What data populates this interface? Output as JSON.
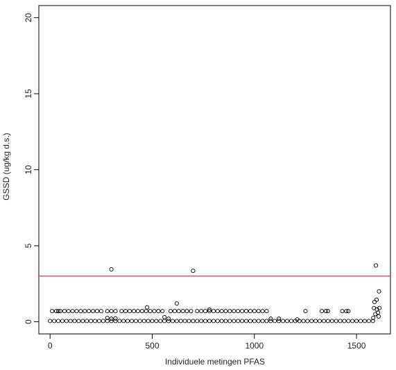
{
  "chart_data": {
    "type": "scatter",
    "xlabel": "Individuele metingen PFAS",
    "ylabel": "GSSD (ug/kg d.s.)",
    "xlim": [
      -55,
      1666
    ],
    "ylim": [
      -0.8,
      20.8
    ],
    "xticks": [
      0,
      500,
      1000,
      1500
    ],
    "yticks": [
      0,
      5,
      10,
      15,
      20
    ],
    "color": "#000000",
    "hline": 3,
    "hline_color": "#e0303a",
    "x": [
      0,
      20,
      40,
      60,
      80,
      100,
      120,
      140,
      160,
      180,
      200,
      220,
      240,
      260,
      280,
      300,
      320,
      340,
      360,
      380,
      400,
      420,
      440,
      460,
      480,
      500,
      520,
      540,
      560,
      580,
      600,
      620,
      640,
      660,
      680,
      700,
      720,
      740,
      760,
      780,
      800,
      820,
      840,
      860,
      880,
      900,
      920,
      940,
      960,
      980,
      1000,
      1020,
      1040,
      1060,
      1080,
      1100,
      1120,
      1140,
      1160,
      1180,
      1200,
      1220,
      1240,
      1260,
      1280,
      1300,
      1320,
      1340,
      1360,
      1380,
      1400,
      1420,
      1440,
      1460,
      1480,
      1500,
      1520,
      1540,
      1560,
      1580,
      10,
      30,
      40,
      50,
      70,
      90,
      110,
      130,
      150,
      170,
      190,
      210,
      230,
      250,
      280,
      300,
      320,
      350,
      370,
      390,
      410,
      430,
      450,
      470,
      490,
      510,
      530,
      550,
      590,
      610,
      630,
      650,
      670,
      690,
      720,
      740,
      760,
      780,
      800,
      820,
      840,
      860,
      880,
      900,
      920,
      940,
      960,
      980,
      1000,
      1020,
      1040,
      1060,
      1250,
      1330,
      1350,
      1360,
      1430,
      1450,
      1460,
      300,
      700,
      1595,
      1610,
      620,
      475,
      1588,
      1598,
      1585,
      1600,
      1605,
      1592,
      1608,
      1582,
      1612,
      280,
      300,
      320,
      560,
      580,
      780,
      1080,
      1120,
      1210
    ],
    "y": [
      0.05,
      0.05,
      0.05,
      0.05,
      0.05,
      0.05,
      0.05,
      0.05,
      0.05,
      0.05,
      0.05,
      0.05,
      0.05,
      0.05,
      0.05,
      0.05,
      0.05,
      0.05,
      0.05,
      0.05,
      0.05,
      0.05,
      0.05,
      0.05,
      0.05,
      0.05,
      0.05,
      0.05,
      0.05,
      0.05,
      0.05,
      0.05,
      0.05,
      0.05,
      0.05,
      0.05,
      0.05,
      0.05,
      0.05,
      0.05,
      0.05,
      0.05,
      0.05,
      0.05,
      0.05,
      0.05,
      0.05,
      0.05,
      0.05,
      0.05,
      0.05,
      0.05,
      0.05,
      0.05,
      0.05,
      0.05,
      0.05,
      0.05,
      0.05,
      0.05,
      0.05,
      0.05,
      0.05,
      0.05,
      0.05,
      0.05,
      0.05,
      0.05,
      0.05,
      0.05,
      0.05,
      0.05,
      0.05,
      0.05,
      0.05,
      0.05,
      0.05,
      0.05,
      0.05,
      0.05,
      0.7,
      0.7,
      0.7,
      0.7,
      0.7,
      0.7,
      0.7,
      0.7,
      0.7,
      0.7,
      0.7,
      0.7,
      0.7,
      0.7,
      0.7,
      0.7,
      0.7,
      0.7,
      0.7,
      0.7,
      0.7,
      0.7,
      0.7,
      0.7,
      0.7,
      0.7,
      0.7,
      0.7,
      0.7,
      0.7,
      0.7,
      0.7,
      0.7,
      0.7,
      0.7,
      0.7,
      0.7,
      0.7,
      0.7,
      0.7,
      0.7,
      0.7,
      0.7,
      0.7,
      0.7,
      0.7,
      0.7,
      0.7,
      0.7,
      0.7,
      0.7,
      0.7,
      0.7,
      0.7,
      0.7,
      0.7,
      0.7,
      0.7,
      0.7,
      3.45,
      3.35,
      3.7,
      2.0,
      1.2,
      0.95,
      1.3,
      1.45,
      0.9,
      0.8,
      0.6,
      0.5,
      0.35,
      0.25,
      0.9,
      0.25,
      0.2,
      0.22,
      0.3,
      0.2,
      0.8,
      0.2,
      0.2,
      0.15
    ]
  }
}
